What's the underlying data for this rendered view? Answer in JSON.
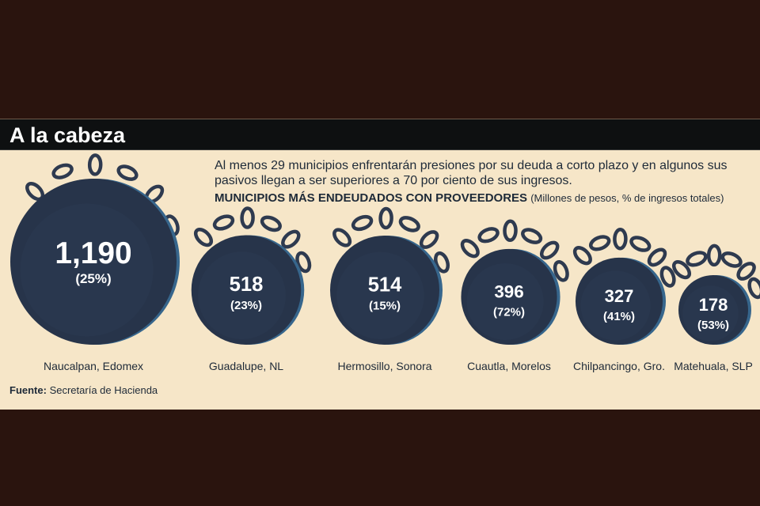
{
  "header": {
    "title": "A la cabeza"
  },
  "intro": "Al menos 29 municipios enfrentarán presiones por su deuda a corto plazo y en algunos sus pasivos llegan a ser superiores a 70 por ciento de sus ingresos.",
  "subhead": {
    "main": "MUNICIPIOS MÁS ENDEUDADOS CON PROVEEDORES",
    "units": "(Millones de pesos, % de ingresos totales)"
  },
  "source": {
    "label": "Fuente:",
    "text": "Secretaría de Hacienda"
  },
  "colors": {
    "ball": "#27344a",
    "ball_shadow": "#1d2737",
    "ball_rim": "#37668c",
    "chain": "#2e3a4f",
    "panel": "#f6e6c8",
    "header": "#0e1011"
  },
  "chart_data": {
    "type": "bubble",
    "categories": [
      "Naucalpan, Edomex",
      "Guadalupe, NL",
      "Hermosillo, Sonora",
      "Cuautla, Morelos",
      "Chilpancingo, Gro.",
      "Matehuala, SLP"
    ],
    "values": [
      1190,
      518,
      514,
      396,
      327,
      178
    ],
    "value_labels": [
      "1,190",
      "518",
      "514",
      "396",
      "327",
      "178"
    ],
    "percent_labels": [
      "(25%)",
      "(23%)",
      "(15%)",
      "(72%)",
      "(41%)",
      "(53%)"
    ],
    "percent_of_income": [
      25,
      23,
      15,
      72,
      41,
      53
    ]
  }
}
